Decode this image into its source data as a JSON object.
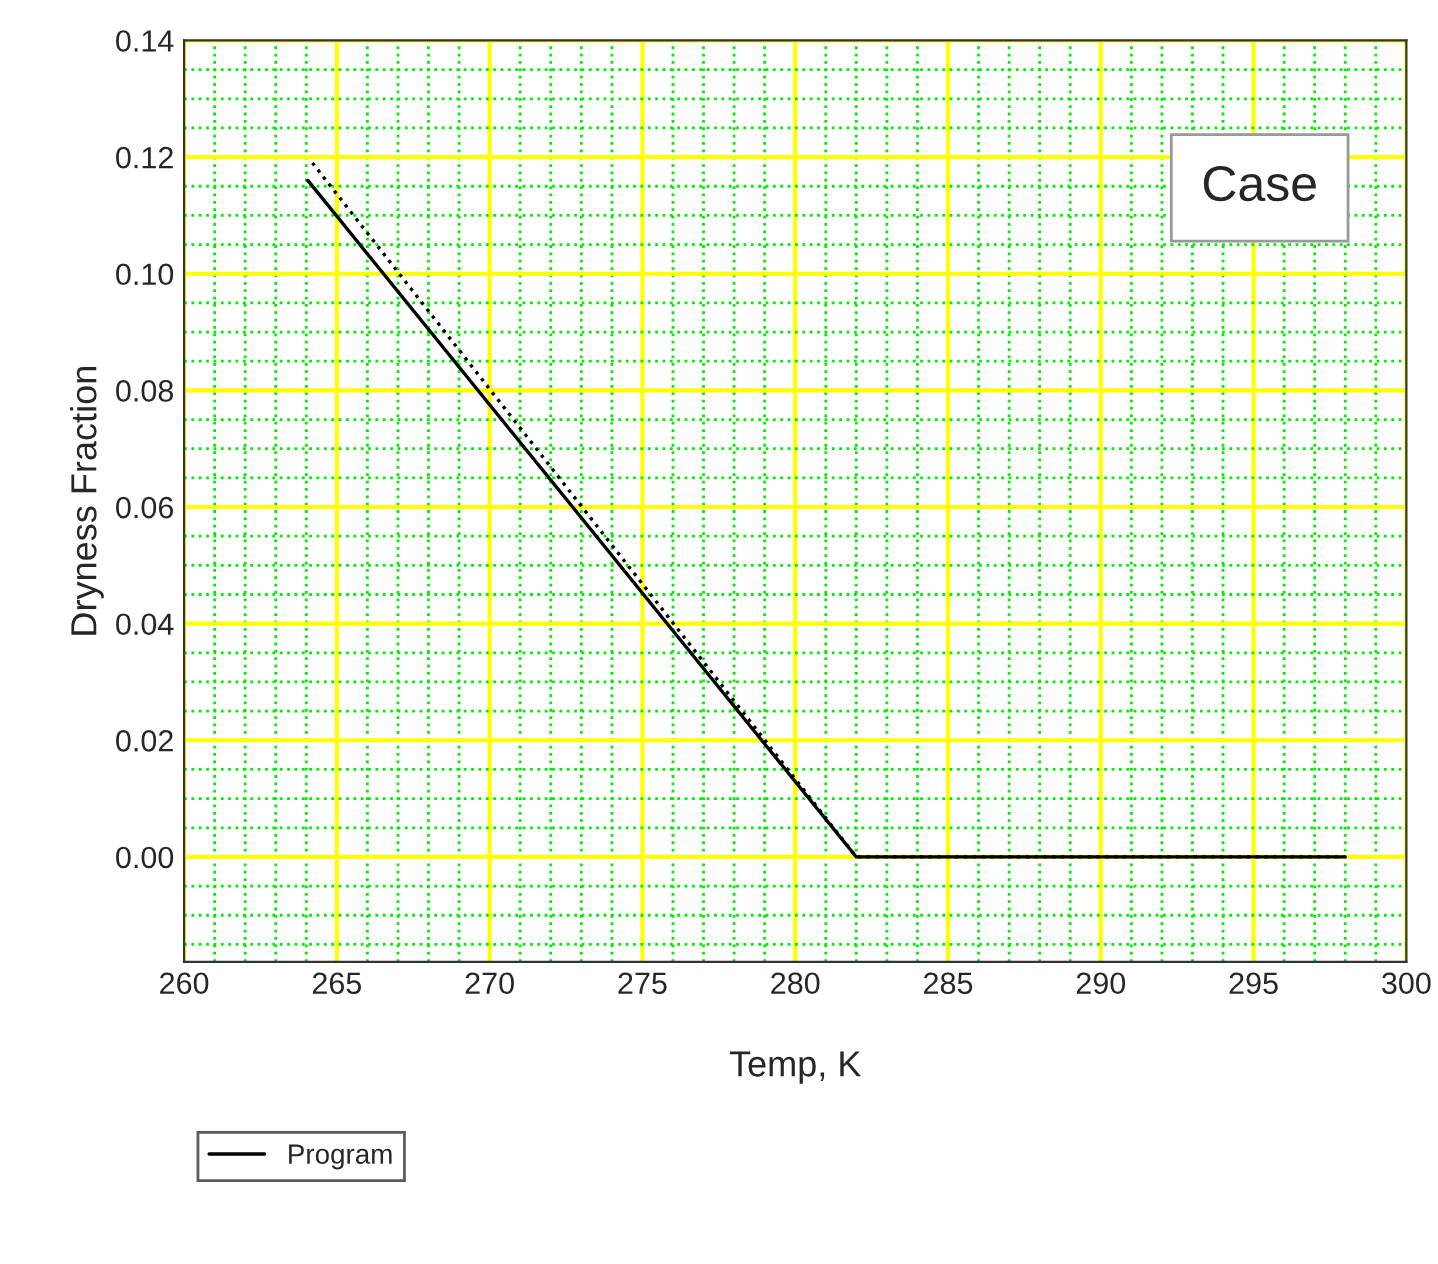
{
  "chart_data": {
    "type": "line",
    "xlabel": "Temp, K",
    "ylabel": "Dryness Fraction",
    "xlim": [
      260,
      300
    ],
    "xticks": [
      260,
      {
        "value": 261,
        "label": null
      },
      {
        "value": 262,
        "label": null
      },
      {
        "value": 263,
        "label": null
      },
      {
        "value": 264,
        "label": null
      },
      265,
      {
        "value": 266,
        "label": null
      },
      {
        "value": 267,
        "label": null
      },
      {
        "value": 268,
        "label": null
      },
      {
        "value": 269,
        "label": null
      },
      270,
      {
        "value": 271,
        "label": null
      },
      {
        "value": 272,
        "label": null
      },
      {
        "value": 273,
        "label": null
      },
      {
        "value": 274,
        "label": null
      },
      275,
      {
        "value": 276,
        "label": null
      },
      {
        "value": 277,
        "label": null
      },
      {
        "value": 278,
        "label": null
      },
      {
        "value": 279,
        "label": null
      },
      280,
      {
        "value": 281,
        "label": null
      },
      {
        "value": 282,
        "label": null
      },
      {
        "value": 283,
        "label": null
      },
      {
        "value": 284,
        "label": null
      },
      285,
      {
        "value": 286,
        "label": null
      },
      {
        "value": 287,
        "label": null
      },
      {
        "value": 288,
        "label": null
      },
      {
        "value": 289,
        "label": null
      },
      290,
      {
        "value": 291,
        "label": null
      },
      {
        "value": 292,
        "label": null
      },
      {
        "value": 293,
        "label": null
      },
      {
        "value": 294,
        "label": null
      },
      295,
      {
        "value": 296,
        "label": null
      },
      {
        "value": 297,
        "label": null
      },
      {
        "value": 298,
        "label": null
      },
      {
        "value": 299,
        "label": null
      },
      300
    ],
    "ylim": [
      -0.018,
      0.14
    ],
    "yticks": [
      {
        "value": -0.015,
        "label": null
      },
      {
        "value": -0.01,
        "label": null
      },
      {
        "value": -0.005,
        "label": null
      },
      {
        "value": 0,
        "label": "0.00"
      },
      {
        "value": 0.005,
        "label": null
      },
      {
        "value": 0.01,
        "label": null
      },
      {
        "value": 0.015,
        "label": null
      },
      {
        "value": 0.02,
        "label": "0.02"
      },
      {
        "value": 0.025,
        "label": null
      },
      {
        "value": 0.03,
        "label": null
      },
      {
        "value": 0.035,
        "label": null
      },
      {
        "value": 0.04,
        "label": "0.04"
      },
      {
        "value": 0.045,
        "label": null
      },
      {
        "value": 0.05,
        "label": null
      },
      {
        "value": 0.055,
        "label": null
      },
      {
        "value": 0.06,
        "label": "0.06"
      },
      {
        "value": 0.065,
        "label": null
      },
      {
        "value": 0.07,
        "label": null
      },
      {
        "value": 0.075,
        "label": null
      },
      {
        "value": 0.08,
        "label": "0.08"
      },
      {
        "value": 0.085,
        "label": null
      },
      {
        "value": 0.09,
        "label": null
      },
      {
        "value": 0.095,
        "label": null
      },
      {
        "value": 0.1,
        "label": "0.10"
      },
      {
        "value": 0.105,
        "label": null
      },
      {
        "value": 0.11,
        "label": null
      },
      {
        "value": 0.115,
        "label": null
      },
      {
        "value": 0.12,
        "label": "0.12"
      },
      {
        "value": 0.125,
        "label": null
      },
      {
        "value": 0.13,
        "label": null
      },
      {
        "value": 0.135,
        "label": null
      },
      {
        "value": 0.14,
        "label": "0.14"
      }
    ],
    "grid": true,
    "legend": "bottom left",
    "annotations": [
      "Case"
    ],
    "series": [
      {
        "name": "Program",
        "color": "#000000",
        "line_style": "solid",
        "x": [
          264.05,
          282,
          298
        ],
        "values": [
          0.116,
          0,
          0
        ]
      },
      {
        "color": "#000000",
        "line_style": "dotted",
        "x": [
          264.2,
          282,
          298
        ],
        "values": [
          0.119,
          0,
          0
        ]
      }
    ]
  }
}
